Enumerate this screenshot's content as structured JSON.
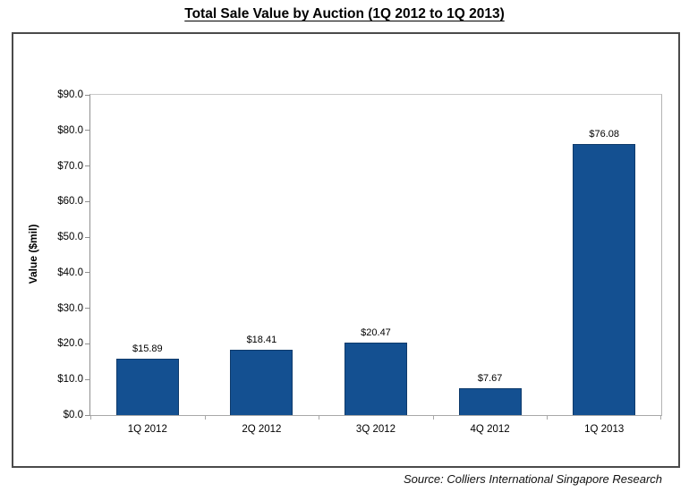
{
  "page": {
    "title": "Total Sale Value by Auction (1Q 2012 to 1Q 2013)",
    "source": "Source: Colliers International Singapore Research"
  },
  "chart_data": {
    "type": "bar",
    "title": "Total Sale Value by Auction (1Q 2012 to 1Q 2013)",
    "categories": [
      "1Q 2012",
      "2Q 2012",
      "3Q 2012",
      "4Q 2012",
      "1Q 2013"
    ],
    "values": [
      15.89,
      18.41,
      20.47,
      7.67,
      76.08
    ],
    "value_labels": [
      "$15.89",
      "$18.41",
      "$20.47",
      "$7.67",
      "$76.08"
    ],
    "xlabel": "",
    "ylabel": "Value ($mil)",
    "ylim": [
      0,
      90
    ],
    "ytick_step": 10,
    "ytick_labels": [
      "$0.0",
      "$10.0",
      "$20.0",
      "$30.0",
      "$40.0",
      "$50.0",
      "$60.0",
      "$70.0",
      "$80.0",
      "$90.0"
    ],
    "grid": false,
    "legend": false,
    "bar_color": "#145091",
    "bar_border_color": "#0e3a6b"
  }
}
